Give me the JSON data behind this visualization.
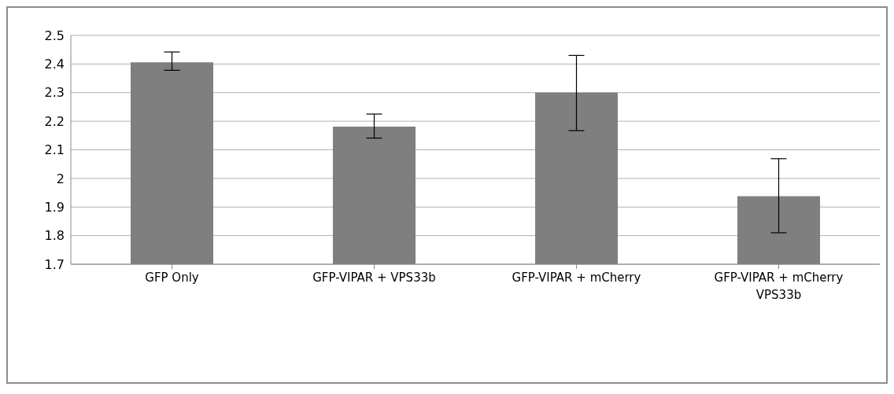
{
  "chart_data": {
    "type": "bar",
    "categories": [
      "GFP Only",
      "GFP-VIPAR + VPS33b",
      "GFP-VIPAR + mCherry",
      "GFP-VIPAR + mCherry VPS33b"
    ],
    "values": [
      2.406,
      2.181,
      2.3,
      1.938
    ],
    "errors": [
      [
        2.378,
        2.442
      ],
      [
        2.141,
        2.225
      ],
      [
        2.167,
        2.43
      ],
      [
        1.81,
        2.069
      ]
    ],
    "color": "#7f7f7f",
    "ylim": [
      1.7,
      2.5
    ],
    "yticks": [
      1.7,
      1.8,
      1.9,
      2,
      2.1,
      2.2,
      2.3,
      2.4,
      2.5
    ],
    "grid": "y",
    "legend": false
  }
}
